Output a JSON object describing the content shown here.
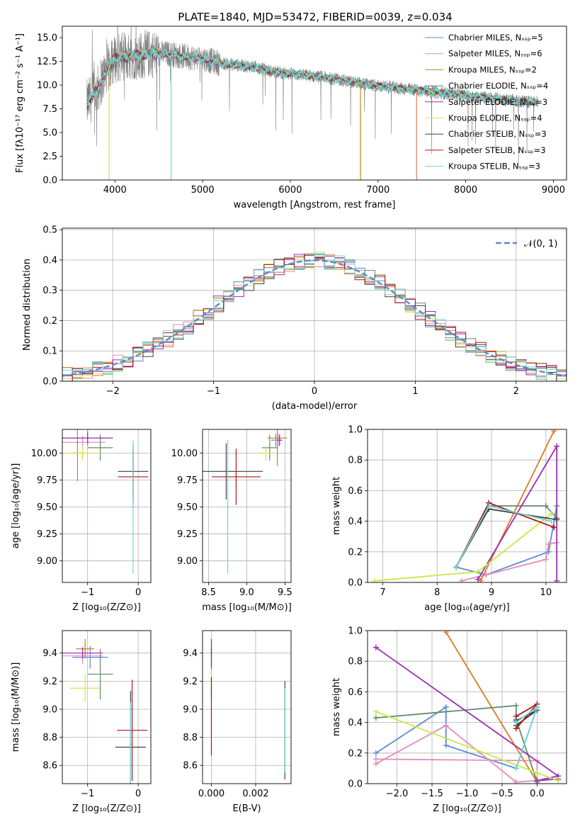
{
  "colors": [
    "#5b8bd0",
    "#e38bbf",
    "#b8891a",
    "#5e8d6a",
    "#9b2db1",
    "#d6e04a",
    "#404040",
    "#b01515",
    "#6fd5d5"
  ],
  "hist_colors": [
    "#5b8bd0",
    "#e38bbf",
    "#e07a1f",
    "#5e8d6a",
    "#9b2db1",
    "#c7ea46",
    "#404040",
    "#b01515",
    "#6fd5d5"
  ],
  "line_colors": [
    "#5b8bd0",
    "#e38bbf",
    "#e07a1f",
    "#5e8d6a",
    "#9b2db1",
    "#c7ea46",
    "#404040",
    "#b01515",
    "#6fd5d5"
  ],
  "chart_data": [
    {
      "id": "spectrum",
      "type": "line",
      "title": "PLATE=1840, MJD=53472, FIBERID=0039, z=0.034",
      "xlabel": "wavelength [Angstrom, rest frame]",
      "ylabel": "Flux [fλ10⁻¹⁷ erg cm⁻² s⁻¹ A⁻¹]",
      "xlim": [
        3400,
        9150
      ],
      "ylim": [
        0,
        16.2
      ],
      "xticks": [
        "4000",
        "5000",
        "6000",
        "7000",
        "8000",
        "9000"
      ],
      "xtick_values": [
        4000,
        5000,
        6000,
        7000,
        8000,
        9000
      ],
      "yticks": [
        "0.0",
        "2.5",
        "5.0",
        "7.5",
        "10.0",
        "12.5",
        "15.0"
      ],
      "ytick_values": [
        0,
        2.5,
        5,
        7.5,
        10,
        12.5,
        15
      ],
      "legend": [
        "Chabrier MILES, Nₛₛₚ=5",
        "Salpeter MILES, Nₛₛₚ=6",
        "Kroupa MILES, Nₛₛₚ=2",
        "Chabrier ELODIE, Nₛₛₚ=4",
        "Salpeter ELODIE, Nₛₛₚ=3",
        "Kroupa ELODIE, Nₛₛₚ=4",
        "Chabrier STELIB, Nₛₛₚ=3",
        "Salpeter STELIB, Nₛₛₚ=3",
        "Kroupa STELIB, Nₛₛₚ=3"
      ],
      "legend_placement": "top-right",
      "continuum": {
        "x": [
          3680,
          3800,
          3900,
          4000,
          4100,
          4200,
          4400,
          4600,
          4800,
          5000,
          5200,
          5400,
          5600,
          5800,
          6000,
          6200,
          6400,
          6600,
          6800,
          7000,
          7200,
          7400,
          7600,
          7800,
          8000,
          8200,
          8400,
          8600,
          8800
        ],
        "y": [
          8.0,
          9.5,
          11.5,
          12.8,
          13.0,
          13.1,
          13.3,
          13.3,
          13.0,
          12.8,
          12.3,
          12.1,
          11.9,
          11.4,
          11.2,
          11.0,
          10.8,
          10.5,
          10.2,
          9.9,
          9.7,
          9.5,
          9.3,
          9.1,
          8.9,
          8.7,
          8.5,
          8.3,
          8.2
        ]
      },
      "data_wave_range": [
        3680,
        8830
      ],
      "model_wave_range": [
        3680,
        8800
      ],
      "absorption_lines": [
        {
          "x": 3934,
          "y": 0.0
        },
        {
          "x": 4640,
          "y": 0.0
        },
        {
          "x": 6800,
          "y": 0.0
        },
        {
          "x": 7440,
          "y": 0.0
        }
      ]
    },
    {
      "id": "residuals",
      "type": "bar",
      "xlabel": "(data-model)/error",
      "ylabel": "Normed distribution",
      "xlim": [
        -2.5,
        2.5
      ],
      "ylim": [
        0,
        0.505
      ],
      "xticks": [
        "−2",
        "−1",
        "0",
        "1",
        "2"
      ],
      "xtick_values": [
        -2,
        -1,
        0,
        1,
        2
      ],
      "yticks": [
        "0.0",
        "0.1",
        "0.2",
        "0.3",
        "0.4",
        "0.5"
      ],
      "ytick_values": [
        0,
        0.1,
        0.2,
        0.3,
        0.4,
        0.5
      ],
      "legend": [
        "𝒩(0, 1)"
      ],
      "legend_placement": "top-right",
      "bin_width": 0.1,
      "grid": true
    },
    {
      "id": "age-vs-Z",
      "type": "scatter",
      "xlabel": "Z [log₁₀(Z/Z⊙)]",
      "ylabel": "age  [log₁₀(age/yr)]",
      "xlim": [
        -1.5,
        0.25
      ],
      "ylim": [
        8.8,
        10.22
      ],
      "xticks": [
        "−1",
        "0"
      ],
      "xtick_values": [
        -1,
        0
      ],
      "yticks": [
        "9.00",
        "9.25",
        "9.50",
        "9.75",
        "10.00"
      ],
      "ytick_values": [
        9.0,
        9.25,
        9.5,
        9.75,
        10.0
      ],
      "grid": true,
      "points": [
        {
          "c": 0,
          "x": -1.0,
          "xerr": 0.5,
          "y": 10.14,
          "yerr": 0.07
        },
        {
          "c": 1,
          "x": -1.1,
          "xerr": 0.45,
          "y": 10.1,
          "yerr": 0.06
        },
        {
          "c": 2,
          "x": -1.2,
          "xerr": 0.15,
          "y": 10.0,
          "yerr": 0.26
        },
        {
          "c": 3,
          "x": -0.75,
          "xerr": 0.25,
          "y": 10.05,
          "yerr": 0.12
        },
        {
          "c": 4,
          "x": -1.0,
          "xerr": 0.5,
          "y": 10.14,
          "yerr": 0.05
        },
        {
          "c": 5,
          "x": -1.1,
          "xerr": 0.35,
          "y": 10.0,
          "yerr": 0.07
        },
        {
          "c": 6,
          "x": -0.1,
          "xerr": 0.3,
          "y": 9.83,
          "yerr": 0.26
        },
        {
          "c": 7,
          "x": -0.1,
          "xerr": 0.3,
          "y": 9.78,
          "yerr": 0.26
        },
        {
          "c": 8,
          "x": -0.1,
          "xerr": 0.05,
          "y": 9.5,
          "yerr": 0.62
        }
      ]
    },
    {
      "id": "age-vs-mass",
      "type": "scatter",
      "xlabel": "mass [log₁₀(M/M⊙)]",
      "xlim": [
        8.42,
        9.58
      ],
      "ylim": [
        8.8,
        10.22
      ],
      "xticks": [
        "8.5",
        "9.0",
        "9.5"
      ],
      "xtick_values": [
        8.5,
        9.0,
        9.5
      ],
      "yticks": [
        "9.00",
        "9.25",
        "9.50",
        "9.75",
        "10.00"
      ],
      "ytick_values": [
        9.0,
        9.25,
        9.5,
        9.75,
        10.0
      ],
      "grid": true,
      "points": [
        {
          "c": 0,
          "x": 9.38,
          "xerr": 0.06,
          "y": 10.12,
          "yerr": 0.06
        },
        {
          "c": 1,
          "x": 9.42,
          "xerr": 0.05,
          "y": 10.12,
          "yerr": 0.06
        },
        {
          "c": 2,
          "x": 9.4,
          "xerr": 0.13,
          "y": 10.14,
          "yerr": 0.26
        },
        {
          "c": 3,
          "x": 9.3,
          "xerr": 0.1,
          "y": 10.05,
          "yerr": 0.12
        },
        {
          "c": 4,
          "x": 9.43,
          "xerr": 0.03,
          "y": 10.12,
          "yerr": 0.05
        },
        {
          "c": 5,
          "x": 9.25,
          "xerr": 0.1,
          "y": 10.0,
          "yerr": 0.07
        },
        {
          "c": 6,
          "x": 8.73,
          "xerr": 0.48,
          "y": 9.83,
          "yerr": 0.26
        },
        {
          "c": 7,
          "x": 8.86,
          "xerr": 0.32,
          "y": 9.78,
          "yerr": 0.26
        },
        {
          "c": 8,
          "x": 8.75,
          "xerr": 0.02,
          "y": 9.5,
          "yerr": 0.62
        }
      ]
    },
    {
      "id": "weight-vs-age",
      "type": "line",
      "xlabel": "age  [log₁₀(age/yr)]",
      "ylabel": "mass weight",
      "xlim": [
        6.72,
        10.38
      ],
      "ylim": [
        0,
        1.0
      ],
      "xticks": [
        "7",
        "8",
        "9",
        "10"
      ],
      "xtick_values": [
        7,
        8,
        9,
        10
      ],
      "yticks": [
        "0.0",
        "0.2",
        "0.4",
        "0.6",
        "0.8",
        "1.0"
      ],
      "ytick_values": [
        0,
        0.2,
        0.4,
        0.6,
        0.8,
        1.0
      ],
      "grid": true,
      "series": [
        {
          "c": 0,
          "x": [
            8.35,
            8.9,
            10.05,
            10.2
          ],
          "y": [
            0.1,
            0.05,
            0.2,
            0.5
          ]
        },
        {
          "c": 1,
          "x": [
            8.45,
            8.9,
            10.0,
            10.05,
            10.2
          ],
          "y": [
            0.01,
            0.05,
            0.15,
            0.25,
            0.26
          ]
        },
        {
          "c": 2,
          "x": [
            8.8,
            10.15
          ],
          "y": [
            0.01,
            0.99
          ]
        },
        {
          "c": 3,
          "x": [
            8.35,
            8.95,
            10.0,
            10.2
          ],
          "y": [
            0.1,
            0.5,
            0.5,
            0.42
          ]
        },
        {
          "c": 4,
          "x": [
            8.75,
            10.2,
            10.2
          ],
          "y": [
            0.02,
            0.89,
            0.01
          ]
        },
        {
          "c": 5,
          "x": [
            6.85,
            8.75,
            10.0,
            10.1
          ],
          "y": [
            0.01,
            0.07,
            0.42,
            0.45
          ]
        },
        {
          "c": 6,
          "x": [
            8.35,
            8.95,
            10.2
          ],
          "y": [
            0.1,
            0.48,
            0.41
          ]
        },
        {
          "c": 7,
          "x": [
            8.35,
            8.95,
            10.15
          ],
          "y": [
            0.1,
            0.52,
            0.36
          ]
        },
        {
          "c": 8,
          "x": [
            8.35,
            8.95,
            10.1
          ],
          "y": [
            0.1,
            0.5,
            0.4
          ]
        }
      ]
    },
    {
      "id": "mass-vs-Z",
      "type": "scatter",
      "xlabel": "Z [log₁₀(Z/Z⊙)]",
      "ylabel": "mass [log₁₀(M/M⊙)]",
      "xlim": [
        -1.5,
        0.25
      ],
      "ylim": [
        8.47,
        9.56
      ],
      "xticks": [
        "−1",
        "0"
      ],
      "xtick_values": [
        -1,
        0
      ],
      "yticks": [
        "8.6",
        "8.8",
        "9.0",
        "9.2",
        "9.4"
      ],
      "ytick_values": [
        8.6,
        8.8,
        9.0,
        9.2,
        9.4
      ],
      "grid": true,
      "points": [
        {
          "c": 0,
          "x": -0.95,
          "xerr": 0.35,
          "y": 9.37,
          "yerr": 0.08
        },
        {
          "c": 1,
          "x": -1.1,
          "xerr": 0.4,
          "y": 9.38,
          "yerr": 0.06
        },
        {
          "c": 2,
          "x": -1.05,
          "xerr": 0.18,
          "y": 9.43,
          "yerr": 0.07
        },
        {
          "c": 3,
          "x": -0.75,
          "xerr": 0.25,
          "y": 9.25,
          "yerr": 0.18
        },
        {
          "c": 4,
          "x": -1.1,
          "xerr": 0.4,
          "y": 9.4,
          "yerr": 0.04
        },
        {
          "c": 5,
          "x": -1.05,
          "xerr": 0.3,
          "y": 9.15,
          "yerr": 0.1
        },
        {
          "c": 6,
          "x": -0.15,
          "xerr": 0.3,
          "y": 8.73,
          "yerr": 0.4
        },
        {
          "c": 7,
          "x": -0.12,
          "xerr": 0.3,
          "y": 8.85,
          "yerr": 0.36
        },
        {
          "c": 8,
          "x": -0.15,
          "xerr": 0.02,
          "y": 8.75,
          "yerr": 0.3
        }
      ]
    },
    {
      "id": "mass-vs-EBV",
      "type": "scatter",
      "xlabel": "E(B-V)",
      "xlim": [
        -0.0004,
        0.0036
      ],
      "ylim": [
        8.47,
        9.56
      ],
      "xticks": [
        "0.000",
        "0.002"
      ],
      "xtick_values": [
        0,
        0.002
      ],
      "yticks": [
        "8.6",
        "8.8",
        "9.0",
        "9.2",
        "9.4"
      ],
      "ytick_values": [
        8.6,
        8.8,
        9.0,
        9.2,
        9.4
      ],
      "grid": true,
      "points": [
        {
          "c": 0,
          "x": 0.0,
          "xerr": 0,
          "y": 9.37,
          "yerr": 0.08
        },
        {
          "c": 1,
          "x": 0.0,
          "xerr": 0,
          "y": 9.38,
          "yerr": 0.06
        },
        {
          "c": 2,
          "x": 0.0,
          "xerr": 0,
          "y": 9.43,
          "yerr": 0.07
        },
        {
          "c": 3,
          "x": 0.0,
          "xerr": 0,
          "y": 9.25,
          "yerr": 0.18
        },
        {
          "c": 4,
          "x": 0.0,
          "xerr": 0,
          "y": 9.4,
          "yerr": 0.1
        },
        {
          "c": 5,
          "x": 0.0,
          "xerr": 0,
          "y": 9.2,
          "yerr": 0.08
        },
        {
          "c": 6,
          "x": 0.00332,
          "xerr": 0,
          "y": 8.85,
          "yerr": 0.35
        },
        {
          "c": 7,
          "x": 0.0,
          "xerr": 0,
          "y": 8.95,
          "yerr": 0.28
        },
        {
          "c": 8,
          "x": 0.00332,
          "xerr": 0,
          "y": 8.85,
          "yerr": 0.3
        }
      ]
    },
    {
      "id": "weight-vs-Z",
      "type": "line",
      "xlabel": "Z [log₁₀(Z/Z⊙)]",
      "ylabel": "mass weight",
      "xlim": [
        -2.42,
        0.42
      ],
      "ylim": [
        0,
        1.0
      ],
      "xticks": [
        "−2.0",
        "−1.5",
        "−1.0",
        "−0.5",
        "0.0"
      ],
      "xtick_values": [
        -2.0,
        -1.5,
        -1.0,
        -0.5,
        0.0
      ],
      "yticks": [
        "0.0",
        "0.2",
        "0.4",
        "0.6",
        "0.8",
        "1.0"
      ],
      "ytick_values": [
        0,
        0.2,
        0.4,
        0.6,
        0.8,
        1.0
      ],
      "grid": true,
      "series": [
        {
          "c": 0,
          "x": [
            -2.3,
            -1.3,
            -1.3,
            -0.3,
            0.0
          ],
          "y": [
            0.2,
            0.5,
            0.25,
            0.1,
            0.5
          ]
        },
        {
          "c": 1,
          "x": [
            -2.3,
            -1.3,
            -0.3,
            0.0,
            0.0,
            -2.3
          ],
          "y": [
            0.13,
            0.38,
            0.01,
            0.02,
            0.15,
            0.16
          ]
        },
        {
          "c": 2,
          "x": [
            -1.3,
            0.0
          ],
          "y": [
            0.99,
            0.01
          ]
        },
        {
          "c": 3,
          "x": [
            -2.3,
            -0.3,
            -0.3,
            0.0
          ],
          "y": [
            0.43,
            0.51,
            0.42,
            0.01
          ]
        },
        {
          "c": 4,
          "x": [
            -2.3,
            0.3,
            0.0,
            0.3
          ],
          "y": [
            0.89,
            0.05,
            0.02,
            0.03
          ]
        },
        {
          "c": 5,
          "x": [
            -2.3,
            0.0,
            0.3
          ],
          "y": [
            0.47,
            0.07,
            0.02
          ]
        },
        {
          "c": 6,
          "x": [
            -0.3,
            0.0,
            -0.3
          ],
          "y": [
            0.41,
            0.48,
            0.38
          ]
        },
        {
          "c": 7,
          "x": [
            -0.3,
            0.0,
            -0.3
          ],
          "y": [
            0.36,
            0.52,
            0.44
          ]
        },
        {
          "c": 8,
          "x": [
            -0.3,
            0.0,
            -0.3
          ],
          "y": [
            0.1,
            0.5,
            0.4
          ]
        }
      ]
    }
  ]
}
